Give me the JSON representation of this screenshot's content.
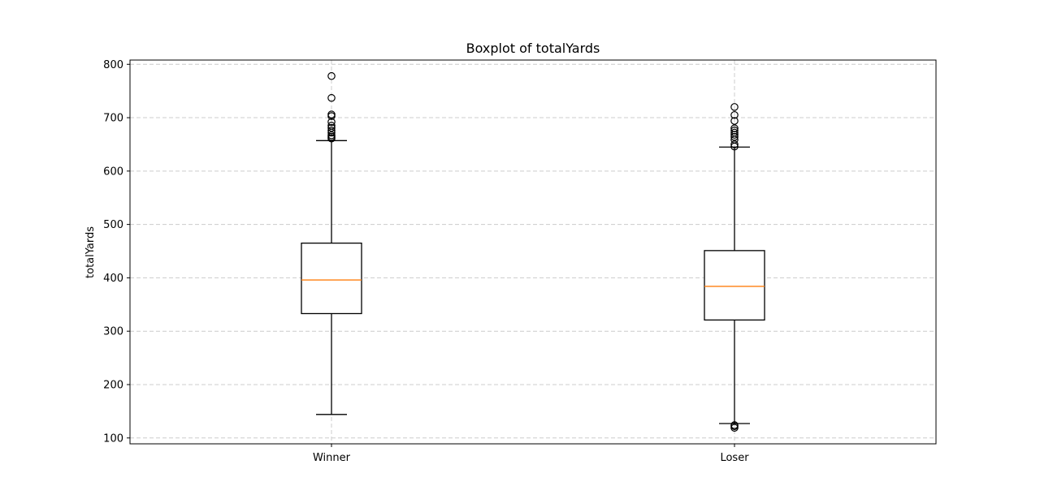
{
  "chart_data": {
    "type": "box",
    "title": "Boxplot of totalYards",
    "xlabel": "",
    "ylabel": "totalYards",
    "ylim": [
      89,
      808
    ],
    "y_ticks": [
      100,
      200,
      300,
      400,
      500,
      600,
      700,
      800
    ],
    "grid": true,
    "categories": [
      "Winner",
      "Loser"
    ],
    "boxes": [
      {
        "label": "Winner",
        "whisker_low": 144,
        "q1": 333,
        "median": 396,
        "q3": 465,
        "whisker_high": 657,
        "outliers": [
          661,
          664,
          667,
          672,
          676,
          681,
          685,
          692,
          703,
          706,
          737,
          778
        ]
      },
      {
        "label": "Loser",
        "whisker_low": 127,
        "q1": 321,
        "median": 384,
        "q3": 451,
        "whisker_high": 645,
        "outliers": [
          119,
          122,
          124,
          646,
          650,
          659,
          664,
          668,
          672,
          676,
          680,
          694,
          705,
          720
        ]
      }
    ],
    "colors": {
      "box": "#000000",
      "median": "#ff7f0e",
      "grid": "#cccccc"
    }
  }
}
